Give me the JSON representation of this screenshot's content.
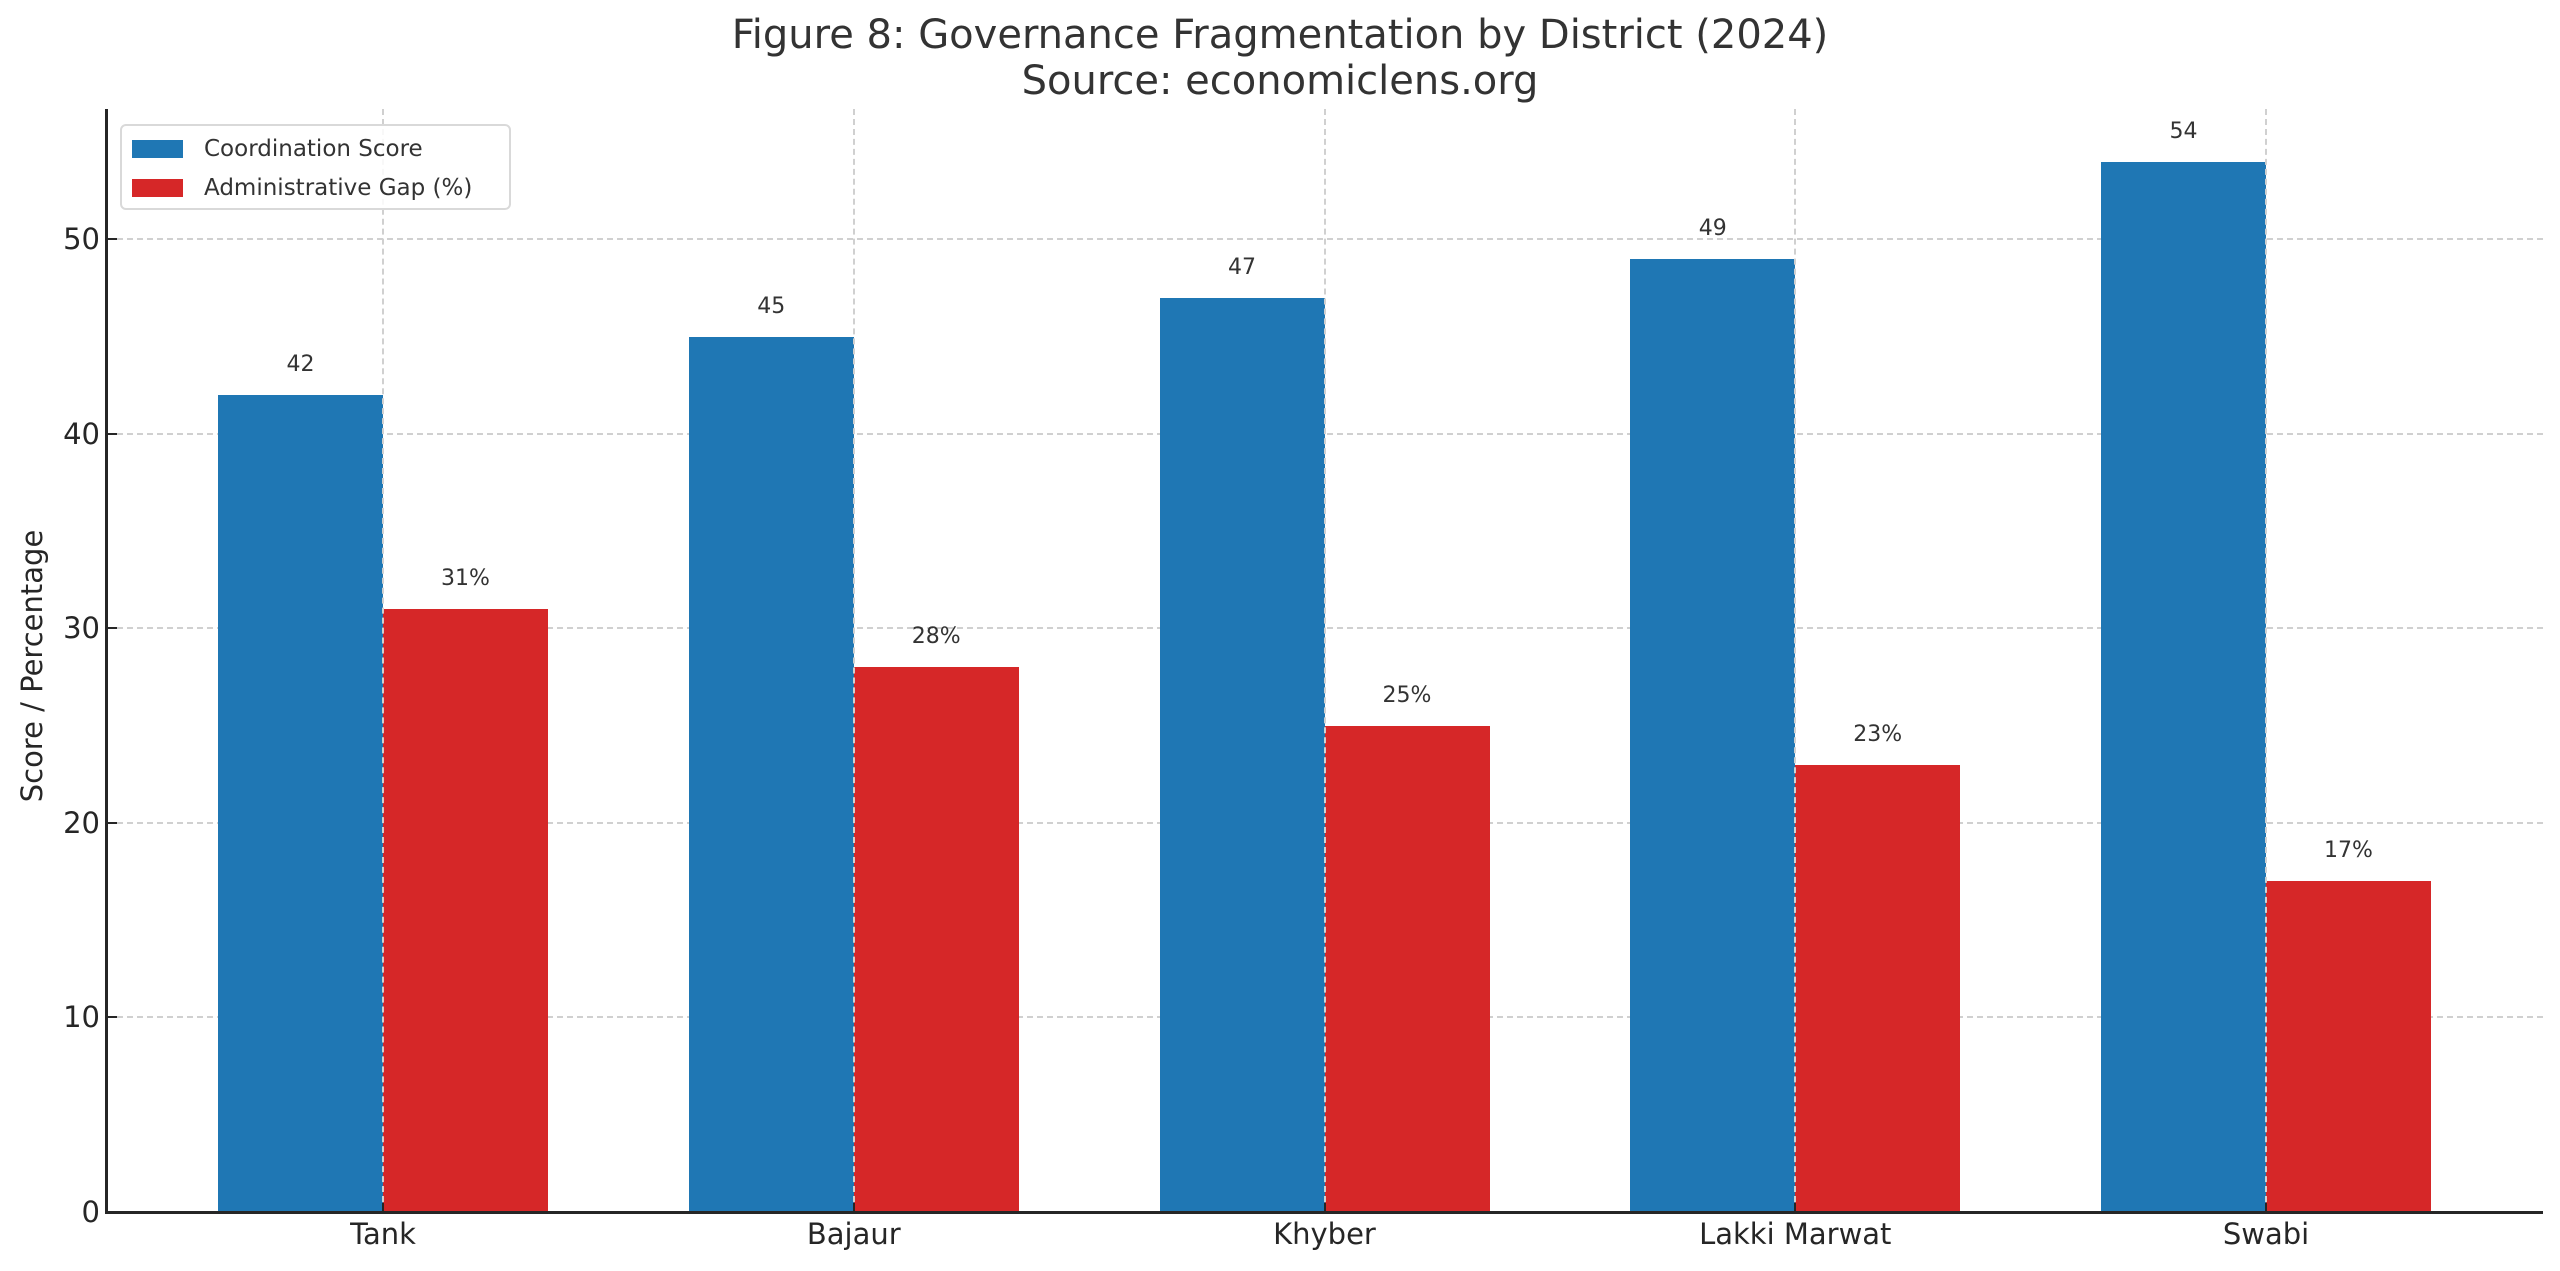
{
  "title": {
    "line1": "Figure 8: Governance Fragmentation by District (2024)",
    "line2": "Source: economiclens.org"
  },
  "axes": {
    "ylabel": "Score / Percentage",
    "yticks": [
      "0",
      "10",
      "20",
      "30",
      "40",
      "50"
    ],
    "xticks": [
      "Tank",
      "Bajaur",
      "Khyber",
      "Lakki Marwat",
      "Swabi"
    ]
  },
  "legend": {
    "items": [
      {
        "label": "Coordination Score",
        "color": "#1f77b4"
      },
      {
        "label": "Administrative Gap (%)",
        "color": "#d62728"
      }
    ]
  },
  "chart_data": {
    "type": "bar",
    "title": "Figure 8: Governance Fragmentation by District (2024)\nSource: economiclens.org",
    "xlabel": "",
    "ylabel": "Score / Percentage",
    "categories": [
      "Tank",
      "Bajaur",
      "Khyber",
      "Lakki Marwat",
      "Swabi"
    ],
    "series": [
      {
        "name": "Coordination Score",
        "color": "#1f77b4",
        "values": [
          42,
          45,
          47,
          49,
          54
        ],
        "labels": [
          "42",
          "45",
          "47",
          "49",
          "54"
        ]
      },
      {
        "name": "Administrative Gap (%)",
        "color": "#d62728",
        "values": [
          31,
          28,
          25,
          23,
          17
        ],
        "labels": [
          "31%",
          "28%",
          "25%",
          "23%",
          "17%"
        ]
      }
    ],
    "ylim": [
      0,
      56.7
    ],
    "yticks": [
      0,
      10,
      20,
      30,
      40,
      50
    ],
    "grid": true,
    "grid_style": "dashed",
    "legend_position": "upper left"
  }
}
